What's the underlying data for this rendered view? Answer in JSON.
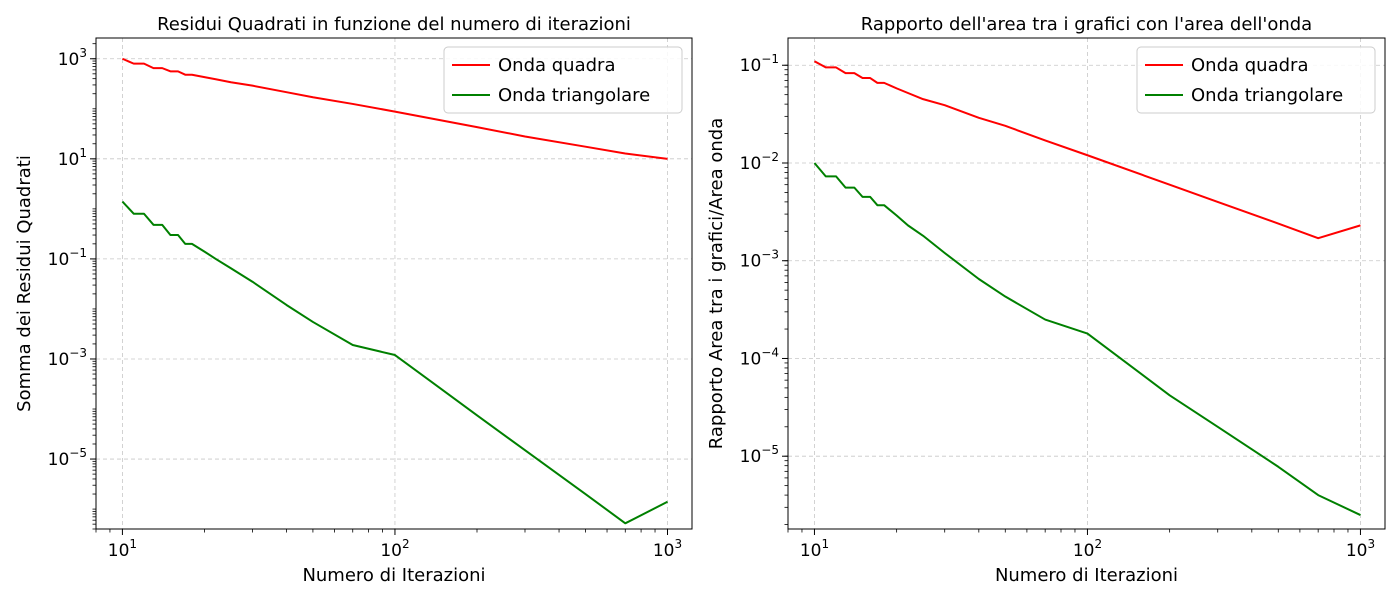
{
  "chart_data": [
    {
      "type": "line",
      "title": "Residui Quadrati in funzione del numero di iterazioni",
      "xlabel": "Numero di Iterazioni",
      "ylabel": "Somma dei Residui Quadrati",
      "xscale": "log",
      "yscale": "log",
      "xlim": [
        8.0,
        1230
      ],
      "ylim": [
        4e-07,
        2600
      ],
      "xticks": [
        {
          "base": "10",
          "exp": "1"
        },
        {
          "base": "10",
          "exp": "2"
        },
        {
          "base": "10",
          "exp": "3"
        }
      ],
      "yticks": [
        {
          "base": "10",
          "exp": "3"
        },
        {
          "base": "10",
          "exp": "1"
        },
        {
          "base": "10",
          "exp": "−1"
        },
        {
          "base": "10",
          "exp": "−3"
        },
        {
          "base": "10",
          "exp": "−5"
        }
      ],
      "grid": true,
      "legend_position": "top-right",
      "series": [
        {
          "name": "Onda quadra",
          "color": "#ff0000",
          "x": [
            10,
            11,
            12,
            13,
            14,
            15,
            16,
            17,
            18,
            20,
            22,
            25,
            30,
            40,
            50,
            70,
            100,
            200,
            300,
            500,
            700,
            1000
          ],
          "y": [
            1000,
            800,
            800,
            650,
            650,
            560,
            560,
            480,
            480,
            430,
            390,
            340,
            290,
            215,
            170,
            125,
            88,
            43,
            28,
            17.5,
            12.8,
            10.0
          ]
        },
        {
          "name": "Onda triangolare",
          "color": "#008000",
          "x": [
            10,
            11,
            12,
            13,
            14,
            15,
            16,
            17,
            18,
            20,
            22,
            25,
            30,
            40,
            50,
            70,
            100,
            200,
            300,
            500,
            700,
            1000
          ],
          "y": [
            1.4,
            0.8,
            0.8,
            0.48,
            0.48,
            0.3,
            0.3,
            0.2,
            0.2,
            0.14,
            0.1,
            0.065,
            0.035,
            0.012,
            0.0055,
            0.0019,
            0.0012,
            7.5e-05,
            1.5e-05,
            2e-06,
            5.2e-07,
            1.4e-06
          ]
        }
      ]
    },
    {
      "type": "line",
      "title": "Rapporto dell'area tra i grafici con l'area dell'onda",
      "xlabel": "Numero di Iterazioni",
      "ylabel": "Rapporto Area tra i grafici/Area onda",
      "xscale": "log",
      "yscale": "log",
      "xlim": [
        8.0,
        1230
      ],
      "ylim": [
        1.8e-06,
        0.19
      ],
      "xticks": [
        {
          "base": "10",
          "exp": "1"
        },
        {
          "base": "10",
          "exp": "2"
        },
        {
          "base": "10",
          "exp": "3"
        }
      ],
      "yticks": [
        {
          "base": "10",
          "exp": "−1"
        },
        {
          "base": "10",
          "exp": "−2"
        },
        {
          "base": "10",
          "exp": "−3"
        },
        {
          "base": "10",
          "exp": "−4"
        },
        {
          "base": "10",
          "exp": "−5"
        }
      ],
      "grid": true,
      "legend_position": "top-right",
      "series": [
        {
          "name": "Onda quadra",
          "color": "#ff0000",
          "x": [
            10,
            11,
            12,
            13,
            14,
            15,
            16,
            17,
            18,
            20,
            22,
            25,
            30,
            40,
            50,
            70,
            100,
            200,
            300,
            500,
            700,
            1000
          ],
          "y": [
            0.11,
            0.095,
            0.095,
            0.083,
            0.083,
            0.074,
            0.074,
            0.066,
            0.066,
            0.058,
            0.052,
            0.045,
            0.039,
            0.029,
            0.024,
            0.017,
            0.012,
            0.006,
            0.004,
            0.0024,
            0.0017,
            0.0023
          ]
        },
        {
          "name": "Onda triangolare",
          "color": "#008000",
          "x": [
            10,
            11,
            12,
            13,
            14,
            15,
            16,
            17,
            18,
            20,
            22,
            25,
            30,
            40,
            50,
            70,
            100,
            200,
            300,
            500,
            700,
            1000
          ],
          "y": [
            0.01,
            0.0073,
            0.0073,
            0.0056,
            0.0056,
            0.0045,
            0.0045,
            0.0037,
            0.0037,
            0.0029,
            0.0023,
            0.0018,
            0.0012,
            0.00065,
            0.00043,
            0.00025,
            0.00018,
            4.2e-05,
            2e-05,
            7.8e-06,
            4e-06,
            2.5e-06
          ]
        }
      ]
    }
  ]
}
